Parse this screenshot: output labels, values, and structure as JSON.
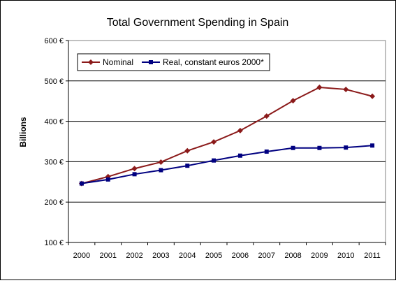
{
  "chart_data": {
    "type": "line",
    "title": "Total Government Spending in Spain",
    "xlabel": "",
    "ylabel": "Billions",
    "categories": [
      "2000",
      "2001",
      "2002",
      "2003",
      "2004",
      "2005",
      "2006",
      "2007",
      "2008",
      "2009",
      "2010",
      "2011"
    ],
    "y_ticks": [
      "100 €",
      "200 €",
      "300 €",
      "400 €",
      "500 €",
      "600 €"
    ],
    "ylim": [
      100,
      600
    ],
    "grid": true,
    "legend_position": "top-left inside plot",
    "series": [
      {
        "name": "Nominal",
        "color": "#8B1A1A",
        "marker": "diamond",
        "values": [
          246,
          263,
          283,
          299,
          327,
          349,
          377,
          413,
          451,
          484,
          479,
          462
        ]
      },
      {
        "name": "Real, constant euros 2000*",
        "color": "#000080",
        "marker": "square",
        "values": [
          246,
          256,
          269,
          279,
          290,
          303,
          315,
          325,
          334,
          334,
          335,
          340
        ]
      }
    ]
  }
}
